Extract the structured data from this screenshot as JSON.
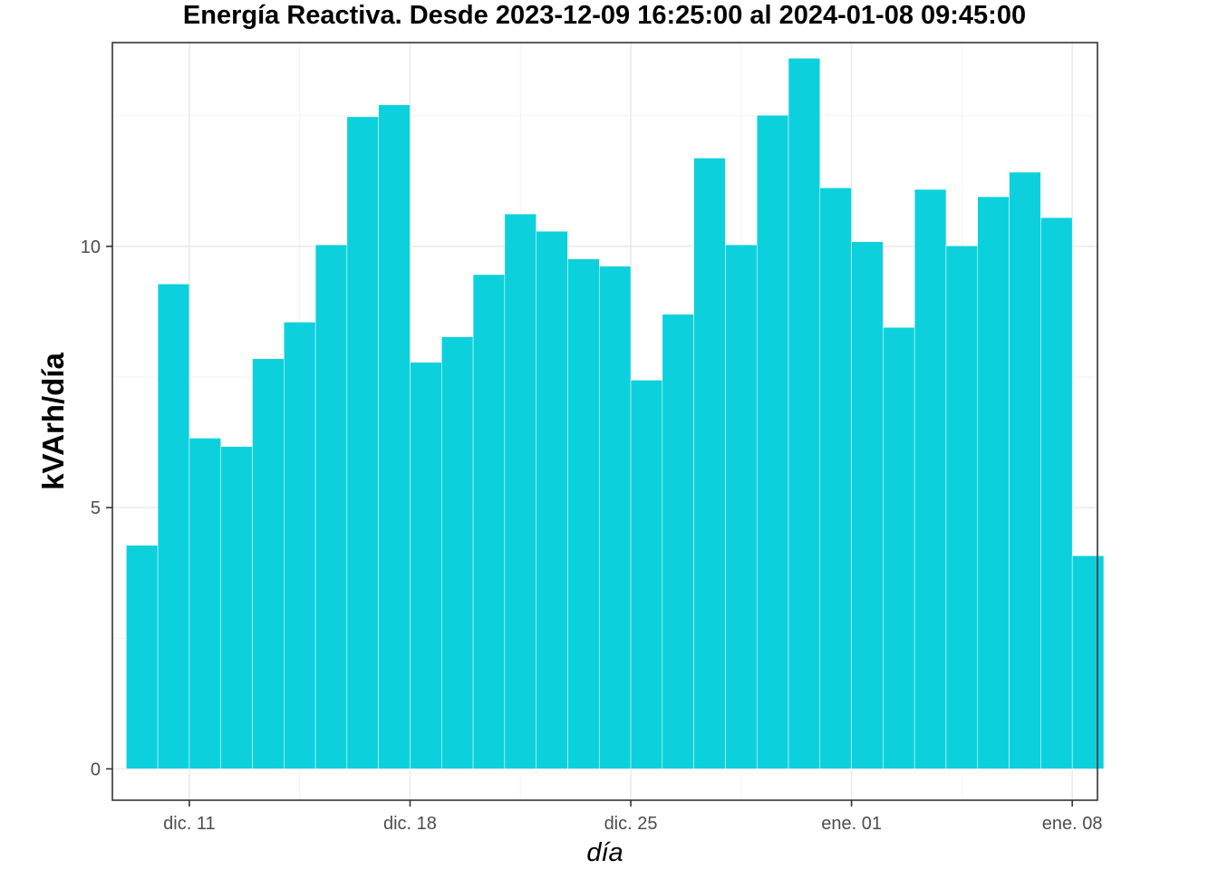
{
  "chart_data": {
    "type": "bar",
    "title": "Energía Reactiva. Desde  2023-12-09 16:25:00  al  2024-01-08 09:45:00",
    "xlabel": "día",
    "ylabel": "kVArh/día",
    "bar_color": "#0CD1DC",
    "grid": true,
    "x_start_date": "2023-12-09",
    "x_ticks": [
      {
        "date": "2023-12-11",
        "label": "dic. 11"
      },
      {
        "date": "2023-12-18",
        "label": "dic. 18"
      },
      {
        "date": "2023-12-25",
        "label": "dic. 25"
      },
      {
        "date": "2024-01-01",
        "label": "ene. 01"
      },
      {
        "date": "2024-01-08",
        "label": "ene. 08"
      }
    ],
    "y_ticks": [
      0,
      5,
      10
    ],
    "ylim": [
      -0.6,
      13.9
    ],
    "xlim": [
      "2023-12-08",
      "2024-01-09"
    ],
    "categories": [
      "2023-12-09",
      "2023-12-10",
      "2023-12-11",
      "2023-12-12",
      "2023-12-13",
      "2023-12-14",
      "2023-12-15",
      "2023-12-16",
      "2023-12-17",
      "2023-12-18",
      "2023-12-19",
      "2023-12-20",
      "2023-12-21",
      "2023-12-22",
      "2023-12-23",
      "2023-12-24",
      "2023-12-25",
      "2023-12-26",
      "2023-12-27",
      "2023-12-28",
      "2023-12-29",
      "2023-12-30",
      "2023-12-31",
      "2024-01-01",
      "2024-01-02",
      "2024-01-03",
      "2024-01-04",
      "2024-01-05",
      "2024-01-06",
      "2024-01-07",
      "2024-01-08"
    ],
    "values": [
      4.28,
      9.28,
      6.33,
      6.17,
      7.85,
      8.55,
      10.03,
      12.48,
      12.71,
      7.78,
      8.27,
      9.46,
      10.62,
      10.29,
      9.76,
      9.62,
      7.44,
      8.7,
      11.69,
      10.03,
      12.51,
      13.6,
      11.12,
      10.09,
      8.45,
      11.09,
      10.01,
      10.95,
      11.42,
      10.55,
      4.08
    ]
  }
}
